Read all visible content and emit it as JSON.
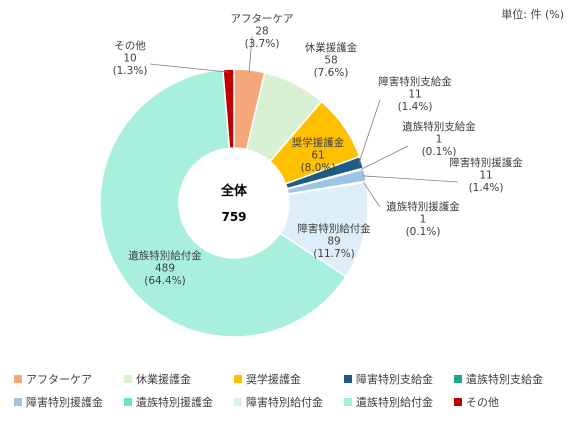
{
  "unit_label": "単位: 件 (%)",
  "colors": {
    "aftercare": "#F5A97B",
    "kyugyo": "#D9F0D3",
    "shogaku": "#FFC000",
    "shogai_shikyu": "#1F5C84",
    "izoku_shikyu": "#1FA88F",
    "shogai_engo": "#9DC3E6",
    "izoku_engo": "#66E3C4",
    "shogai_kyufu": "#DDEEF8",
    "izoku_kyufu": "#A8F0DD",
    "sonota": "#C00000"
  },
  "chart_data": {
    "type": "pie",
    "donut": true,
    "center_title": "全体",
    "center_value": "759",
    "total": 759,
    "series": [
      {
        "name": "アフターケア",
        "value": 28,
        "pct": "(3.7%)",
        "color_key": "aftercare"
      },
      {
        "name": "休業援護金",
        "value": 58,
        "pct": "(7.6%)",
        "color_key": "kyugyo"
      },
      {
        "name": "奨学援護金",
        "value": 61,
        "pct": "(8.0%)",
        "color_key": "shogaku"
      },
      {
        "name": "障害特別支給金",
        "value": 11,
        "pct": "(1.4%)",
        "color_key": "shogai_shikyu"
      },
      {
        "name": "遺族特別支給金",
        "value": 1,
        "pct": "(0.1%)",
        "color_key": "izoku_shikyu"
      },
      {
        "name": "障害特別援護金",
        "value": 11,
        "pct": "(1.4%)",
        "color_key": "shogai_engo"
      },
      {
        "name": "遺族特別援護金",
        "value": 1,
        "pct": "(0.1%)",
        "color_key": "izoku_engo"
      },
      {
        "name": "障害特別給付金",
        "value": 89,
        "pct": "(11.7%)",
        "color_key": "shogai_kyufu"
      },
      {
        "name": "遺族特別給付金",
        "value": 489,
        "pct": "(64.4%)",
        "color_key": "izoku_kyufu"
      },
      {
        "name": "その他",
        "value": 10,
        "pct": "(1.3%)",
        "color_key": "sonota"
      }
    ],
    "legend_position": "bottom"
  }
}
